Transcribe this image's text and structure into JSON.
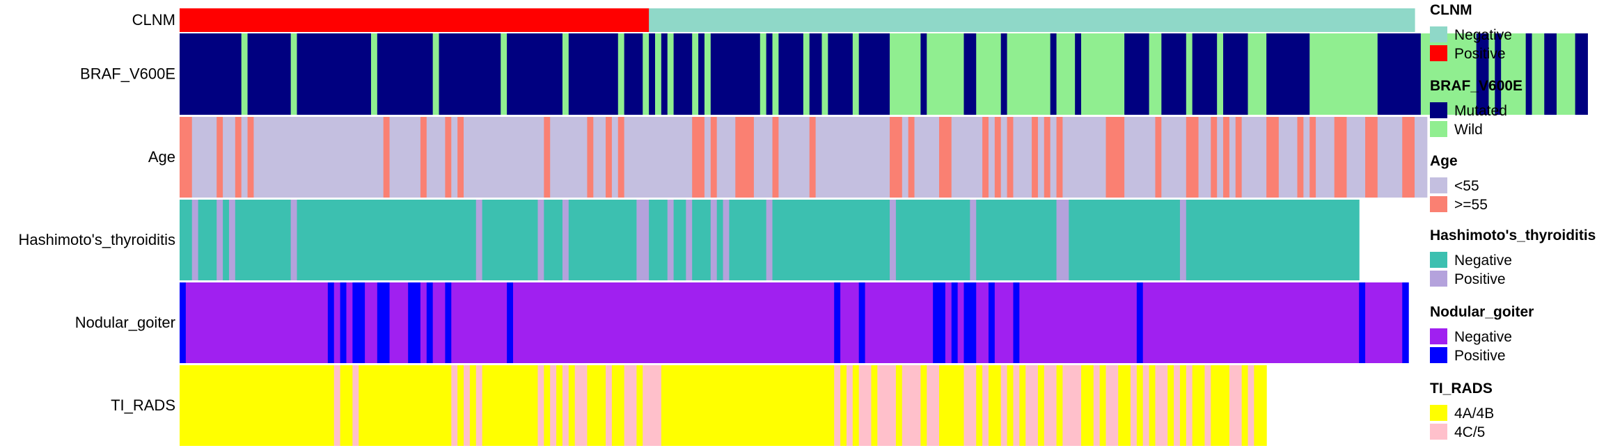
{
  "chart_data": {
    "type": "heatmap",
    "n_samples": 200,
    "tracks": [
      {
        "name": "CLNM",
        "categories": [
          {
            "label": "Negative",
            "color": "#8FD8C8"
          },
          {
            "label": "Positive",
            "color": "#FF0000"
          }
        ],
        "runs": [
          [
            1,
            76
          ],
          [
            0,
            124
          ]
        ]
      },
      {
        "name": "BRAF_V600E",
        "categories": [
          {
            "label": "Mutated",
            "color": "#000080"
          },
          {
            "label": "Wild",
            "color": "#90EE90"
          }
        ],
        "runs": [
          [
            0,
            10
          ],
          [
            1,
            1
          ],
          [
            0,
            7
          ],
          [
            1,
            1
          ],
          [
            0,
            12
          ],
          [
            1,
            1
          ],
          [
            0,
            9
          ],
          [
            1,
            1
          ],
          [
            0,
            10
          ],
          [
            1,
            1
          ],
          [
            0,
            9
          ],
          [
            1,
            1
          ],
          [
            0,
            8
          ],
          [
            1,
            1
          ],
          [
            0,
            3
          ],
          [
            1,
            1
          ],
          [
            0,
            1
          ],
          [
            1,
            1
          ],
          [
            0,
            1
          ],
          [
            1,
            1
          ],
          [
            0,
            3
          ],
          [
            1,
            1
          ],
          [
            0,
            1
          ],
          [
            1,
            1
          ],
          [
            0,
            8
          ],
          [
            1,
            1
          ],
          [
            0,
            1
          ],
          [
            1,
            1
          ],
          [
            0,
            4
          ],
          [
            1,
            1
          ],
          [
            0,
            2
          ],
          [
            1,
            1
          ],
          [
            0,
            4
          ],
          [
            1,
            1
          ],
          [
            0,
            5
          ],
          [
            1,
            5
          ],
          [
            0,
            1
          ],
          [
            1,
            6
          ],
          [
            0,
            2
          ],
          [
            1,
            4
          ],
          [
            0,
            1
          ],
          [
            1,
            7
          ],
          [
            0,
            1
          ],
          [
            1,
            3
          ],
          [
            0,
            1
          ],
          [
            1,
            7
          ],
          [
            0,
            4
          ],
          [
            1,
            2
          ],
          [
            0,
            4
          ],
          [
            1,
            1
          ],
          [
            0,
            4
          ],
          [
            1,
            1
          ],
          [
            0,
            4
          ],
          [
            1,
            3
          ],
          [
            0,
            7
          ],
          [
            1,
            11
          ],
          [
            0,
            7
          ],
          [
            1,
            9
          ],
          [
            0,
            2
          ],
          [
            1,
            1
          ],
          [
            0,
            1
          ],
          [
            1,
            4
          ],
          [
            0,
            1
          ],
          [
            1,
            2
          ],
          [
            0,
            2
          ],
          [
            1,
            3
          ],
          [
            0,
            2
          ]
        ]
      },
      {
        "name": "Age",
        "categories": [
          {
            "label": "<55",
            "color": "#C4BFE0"
          },
          {
            "label": ">=55",
            "color": "#FA8072"
          }
        ],
        "runs": [
          [
            1,
            2
          ],
          [
            0,
            4
          ],
          [
            1,
            1
          ],
          [
            0,
            2
          ],
          [
            1,
            1
          ],
          [
            0,
            1
          ],
          [
            1,
            1
          ],
          [
            0,
            21
          ],
          [
            1,
            1
          ],
          [
            0,
            5
          ],
          [
            1,
            1
          ],
          [
            0,
            3
          ],
          [
            1,
            1
          ],
          [
            0,
            1
          ],
          [
            1,
            1
          ],
          [
            0,
            13
          ],
          [
            1,
            1
          ],
          [
            0,
            6
          ],
          [
            1,
            1
          ],
          [
            0,
            2
          ],
          [
            1,
            1
          ],
          [
            0,
            1
          ],
          [
            1,
            1
          ],
          [
            0,
            11
          ],
          [
            1,
            2
          ],
          [
            0,
            1
          ],
          [
            1,
            1
          ],
          [
            0,
            3
          ],
          [
            1,
            3
          ],
          [
            0,
            3
          ],
          [
            1,
            1
          ],
          [
            0,
            5
          ],
          [
            1,
            1
          ],
          [
            0,
            12
          ],
          [
            1,
            2
          ],
          [
            0,
            1
          ],
          [
            1,
            1
          ],
          [
            0,
            4
          ],
          [
            1,
            2
          ],
          [
            0,
            5
          ],
          [
            1,
            1
          ],
          [
            0,
            1
          ],
          [
            1,
            1
          ],
          [
            0,
            1
          ],
          [
            1,
            1
          ],
          [
            0,
            3
          ],
          [
            1,
            1
          ],
          [
            0,
            1
          ],
          [
            1,
            1
          ],
          [
            0,
            1
          ],
          [
            1,
            1
          ],
          [
            0,
            7
          ],
          [
            1,
            3
          ],
          [
            0,
            5
          ],
          [
            1,
            1
          ],
          [
            0,
            4
          ],
          [
            1,
            2
          ],
          [
            0,
            2
          ],
          [
            1,
            1
          ],
          [
            0,
            1
          ],
          [
            1,
            1
          ],
          [
            0,
            1
          ],
          [
            1,
            1
          ],
          [
            0,
            4
          ],
          [
            1,
            2
          ],
          [
            0,
            3
          ],
          [
            1,
            1
          ],
          [
            0,
            1
          ],
          [
            1,
            1
          ],
          [
            0,
            3
          ],
          [
            1,
            2
          ],
          [
            0,
            3
          ],
          [
            1,
            2
          ],
          [
            0,
            4
          ],
          [
            1,
            2
          ],
          [
            0,
            2
          ]
        ]
      },
      {
        "name": "Hashimoto's_thyroiditis",
        "categories": [
          {
            "label": "Negative",
            "color": "#3CC0B0"
          },
          {
            "label": "Positive",
            "color": "#B4A2DC"
          }
        ],
        "runs": [
          [
            0,
            2
          ],
          [
            1,
            1
          ],
          [
            0,
            3
          ],
          [
            1,
            1
          ],
          [
            0,
            1
          ],
          [
            1,
            1
          ],
          [
            0,
            9
          ],
          [
            1,
            1
          ],
          [
            0,
            29
          ],
          [
            1,
            1
          ],
          [
            0,
            9
          ],
          [
            1,
            1
          ],
          [
            0,
            3
          ],
          [
            1,
            1
          ],
          [
            0,
            11
          ],
          [
            1,
            2
          ],
          [
            0,
            3
          ],
          [
            1,
            1
          ],
          [
            0,
            2
          ],
          [
            1,
            1
          ],
          [
            0,
            3
          ],
          [
            1,
            1
          ],
          [
            0,
            1
          ],
          [
            1,
            1
          ],
          [
            0,
            6
          ],
          [
            1,
            1
          ],
          [
            0,
            19
          ],
          [
            1,
            1
          ],
          [
            0,
            12
          ],
          [
            1,
            1
          ],
          [
            0,
            13
          ],
          [
            1,
            2
          ],
          [
            0,
            18
          ],
          [
            1,
            1
          ],
          [
            0,
            28
          ]
        ]
      },
      {
        "name": "Nodular_goiter",
        "categories": [
          {
            "label": "Negative",
            "color": "#A020F0"
          },
          {
            "label": "Positive",
            "color": "#0000FF"
          }
        ],
        "runs": [
          [
            1,
            1
          ],
          [
            0,
            23
          ],
          [
            1,
            1
          ],
          [
            0,
            1
          ],
          [
            1,
            1
          ],
          [
            0,
            1
          ],
          [
            1,
            2
          ],
          [
            0,
            2
          ],
          [
            1,
            2
          ],
          [
            0,
            3
          ],
          [
            1,
            2
          ],
          [
            0,
            1
          ],
          [
            1,
            1
          ],
          [
            0,
            2
          ],
          [
            1,
            1
          ],
          [
            0,
            9
          ],
          [
            1,
            1
          ],
          [
            0,
            52
          ],
          [
            1,
            1
          ],
          [
            0,
            3
          ],
          [
            1,
            1
          ],
          [
            0,
            11
          ],
          [
            1,
            2
          ],
          [
            0,
            1
          ],
          [
            1,
            1
          ],
          [
            0,
            1
          ],
          [
            1,
            2
          ],
          [
            0,
            2
          ],
          [
            1,
            1
          ],
          [
            0,
            3
          ],
          [
            1,
            1
          ],
          [
            0,
            19
          ],
          [
            1,
            1
          ],
          [
            0,
            35
          ],
          [
            1,
            1
          ],
          [
            0,
            6
          ],
          [
            1,
            1
          ]
        ]
      },
      {
        "name": "TI_RADS",
        "categories": [
          {
            "label": "4A/4B",
            "color": "#FFFF00"
          },
          {
            "label": "4C/5",
            "color": "#FFC0CB"
          }
        ],
        "runs": [
          [
            0,
            25
          ],
          [
            1,
            1
          ],
          [
            0,
            2
          ],
          [
            1,
            1
          ],
          [
            0,
            15
          ],
          [
            1,
            1
          ],
          [
            0,
            1
          ],
          [
            1,
            1
          ],
          [
            0,
            1
          ],
          [
            1,
            1
          ],
          [
            0,
            9
          ],
          [
            1,
            1
          ],
          [
            0,
            1
          ],
          [
            1,
            1
          ],
          [
            0,
            1
          ],
          [
            1,
            1
          ],
          [
            0,
            1
          ],
          [
            1,
            2
          ],
          [
            0,
            3
          ],
          [
            1,
            1
          ],
          [
            0,
            2
          ],
          [
            1,
            2
          ],
          [
            0,
            1
          ],
          [
            1,
            3
          ],
          [
            0,
            28
          ],
          [
            1,
            1
          ],
          [
            0,
            1
          ],
          [
            1,
            1
          ],
          [
            0,
            1
          ],
          [
            1,
            2
          ],
          [
            0,
            1
          ],
          [
            1,
            3
          ],
          [
            0,
            1
          ],
          [
            1,
            3
          ],
          [
            0,
            1
          ],
          [
            1,
            2
          ],
          [
            0,
            4
          ],
          [
            1,
            2
          ],
          [
            0,
            1
          ],
          [
            1,
            1
          ],
          [
            0,
            2
          ],
          [
            1,
            1
          ],
          [
            0,
            1
          ],
          [
            1,
            1
          ],
          [
            0,
            1
          ],
          [
            1,
            2
          ],
          [
            0,
            1
          ],
          [
            1,
            2
          ],
          [
            0,
            1
          ],
          [
            1,
            3
          ],
          [
            0,
            2
          ],
          [
            1,
            1
          ],
          [
            0,
            1
          ],
          [
            1,
            2
          ],
          [
            0,
            2
          ],
          [
            1,
            1
          ],
          [
            0,
            1
          ],
          [
            1,
            1
          ],
          [
            0,
            1
          ],
          [
            1,
            2
          ],
          [
            0,
            1
          ],
          [
            1,
            1
          ],
          [
            0,
            1
          ],
          [
            1,
            1
          ],
          [
            0,
            2
          ],
          [
            1,
            1
          ],
          [
            0,
            3
          ],
          [
            1,
            2
          ],
          [
            0,
            1
          ],
          [
            1,
            1
          ],
          [
            0,
            2
          ]
        ]
      }
    ]
  }
}
